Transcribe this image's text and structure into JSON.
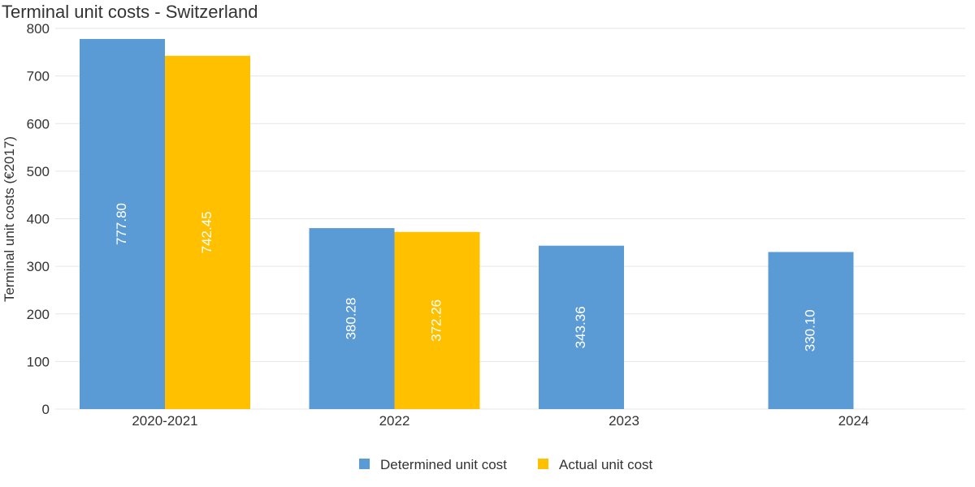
{
  "chart_data": {
    "type": "bar",
    "title": "Terminal unit costs - Switzerland",
    "xlabel": "",
    "ylabel": "Terminal unit costs (€2017)",
    "ylim": [
      0,
      800
    ],
    "yticks": [
      0,
      100,
      200,
      300,
      400,
      500,
      600,
      700,
      800
    ],
    "categories": [
      "2020-2021",
      "2022",
      "2023",
      "2024"
    ],
    "series": [
      {
        "name": "Determined unit cost",
        "color": "#5b9bd5",
        "values": [
          777.8,
          380.28,
          343.36,
          330.1
        ],
        "labels": [
          "777.80",
          "380.28",
          "343.36",
          "330.10"
        ]
      },
      {
        "name": "Actual unit cost",
        "color": "#ffc000",
        "values": [
          742.45,
          372.26,
          null,
          null
        ],
        "labels": [
          "742.45",
          "372.26",
          "",
          ""
        ]
      }
    ],
    "grid": true,
    "legend": "bottom"
  }
}
